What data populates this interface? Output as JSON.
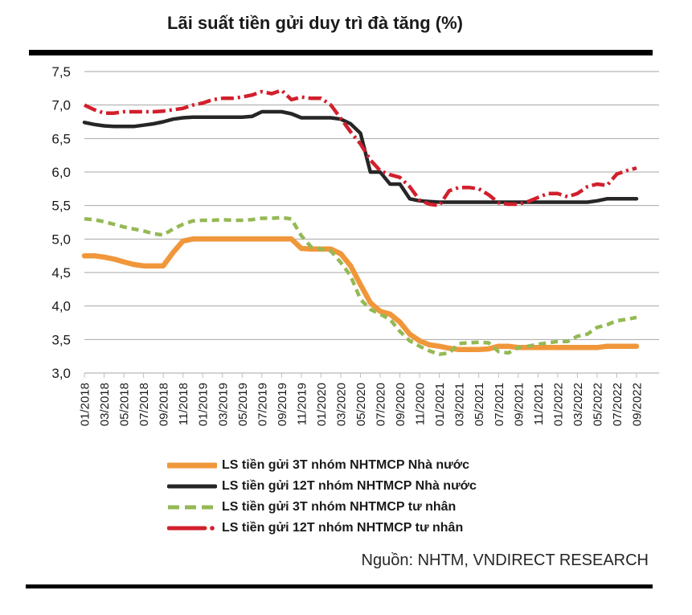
{
  "title": "Lãi suất tiền gửi duy trì đà tăng (%)",
  "source": "Nguồn: NHTM, VNDIRECT RESEARCH",
  "colors": {
    "orange": "#F0973B",
    "black": "#262626",
    "green": "#94B954",
    "red": "#D21F2C",
    "gridline": "#A6A6A6",
    "tick": "#BFBFBF",
    "text": "#1a1a1a",
    "rule": "#000000"
  },
  "chart_data": {
    "type": "line",
    "title": "Lãi suất tiền gửi duy trì đà tăng (%)",
    "xlabel": "",
    "ylabel": "",
    "ylim": [
      3.0,
      7.5
    ],
    "grid": "horizontal",
    "legend_position": "bottom",
    "y_ticks": [
      {
        "label": "7,5",
        "value": 7.5
      },
      {
        "label": "7,0",
        "value": 7.0
      },
      {
        "label": "6,5",
        "value": 6.5
      },
      {
        "label": "6,0",
        "value": 6.0
      },
      {
        "label": "5,5",
        "value": 5.5
      },
      {
        "label": "5,0",
        "value": 5.0
      },
      {
        "label": "4,5",
        "value": 4.5
      },
      {
        "label": "4,0",
        "value": 4.0
      },
      {
        "label": "3,5",
        "value": 3.5
      },
      {
        "label": "3,0",
        "value": 3.0
      }
    ],
    "x": [
      "01/2018",
      "02/2018",
      "03/2018",
      "04/2018",
      "05/2018",
      "06/2018",
      "07/2018",
      "08/2018",
      "09/2018",
      "10/2018",
      "11/2018",
      "12/2018",
      "01/2019",
      "02/2019",
      "03/2019",
      "04/2019",
      "05/2019",
      "06/2019",
      "07/2019",
      "08/2019",
      "09/2019",
      "10/2019",
      "11/2019",
      "12/2019",
      "01/2020",
      "02/2020",
      "03/2020",
      "04/2020",
      "05/2020",
      "06/2020",
      "07/2020",
      "08/2020",
      "09/2020",
      "10/2020",
      "11/2020",
      "12/2020",
      "01/2021",
      "02/2021",
      "03/2021",
      "04/2021",
      "05/2021",
      "06/2021",
      "07/2021",
      "08/2021",
      "09/2021",
      "10/2021",
      "11/2021",
      "12/2021",
      "01/2022",
      "02/2022",
      "03/2022",
      "04/2022",
      "05/2022",
      "06/2022",
      "07/2022",
      "08/2022",
      "09/2022"
    ],
    "x_tick_labels": [
      "01/2018",
      "03/2018",
      "05/2018",
      "07/2018",
      "09/2018",
      "11/2018",
      "01/2019",
      "03/2019",
      "05/2019",
      "07/2019",
      "09/2019",
      "11/2019",
      "01/2020",
      "03/2020",
      "05/2020",
      "07/2020",
      "09/2020",
      "11/2020",
      "01/2021",
      "03/2021",
      "05/2021",
      "07/2021",
      "09/2021",
      "11/2021",
      "01/2022",
      "03/2022",
      "05/2022",
      "07/2022",
      "09/2022"
    ],
    "series": [
      {
        "name": "LS tiền gửi 3T nhóm NHTMCP Nhà nước",
        "color": "#F0973B",
        "style": "solid",
        "width": 6.5,
        "values": [
          4.75,
          4.75,
          4.73,
          4.7,
          4.66,
          4.62,
          4.6,
          4.6,
          4.6,
          4.8,
          4.97,
          5.0,
          5.0,
          5.0,
          5.0,
          5.0,
          5.0,
          5.0,
          5.0,
          5.0,
          5.0,
          5.0,
          4.86,
          4.85,
          4.85,
          4.85,
          4.78,
          4.6,
          4.32,
          4.05,
          3.92,
          3.88,
          3.76,
          3.58,
          3.48,
          3.42,
          3.4,
          3.37,
          3.35,
          3.35,
          3.35,
          3.36,
          3.4,
          3.4,
          3.38,
          3.38,
          3.38,
          3.38,
          3.38,
          3.38,
          3.38,
          3.38,
          3.38,
          3.4,
          3.4,
          3.4,
          3.4
        ]
      },
      {
        "name": "LS tiền gửi 12T nhóm NHTMCP Nhà nước",
        "color": "#262626",
        "style": "solid",
        "width": 4.5,
        "values": [
          6.74,
          6.71,
          6.69,
          6.68,
          6.68,
          6.68,
          6.7,
          6.72,
          6.75,
          6.79,
          6.81,
          6.82,
          6.82,
          6.82,
          6.82,
          6.82,
          6.82,
          6.83,
          6.9,
          6.9,
          6.9,
          6.87,
          6.81,
          6.81,
          6.81,
          6.81,
          6.79,
          6.72,
          6.58,
          6.0,
          6.0,
          5.82,
          5.82,
          5.6,
          5.57,
          5.56,
          5.55,
          5.55,
          5.55,
          5.55,
          5.55,
          5.55,
          5.55,
          5.55,
          5.55,
          5.55,
          5.55,
          5.55,
          5.55,
          5.55,
          5.55,
          5.55,
          5.57,
          5.6,
          5.6,
          5.6,
          5.6
        ]
      },
      {
        "name": "LS tiền gửi 3T nhóm NHTMCP tư nhân",
        "color": "#94B954",
        "style": "dashed",
        "width": 4.5,
        "values": [
          5.3,
          5.29,
          5.26,
          5.22,
          5.18,
          5.15,
          5.12,
          5.08,
          5.06,
          5.15,
          5.22,
          5.27,
          5.28,
          5.28,
          5.29,
          5.28,
          5.28,
          5.29,
          5.31,
          5.31,
          5.32,
          5.3,
          5.05,
          4.88,
          4.85,
          4.82,
          4.65,
          4.45,
          4.1,
          3.95,
          3.88,
          3.8,
          3.62,
          3.48,
          3.4,
          3.33,
          3.28,
          3.3,
          3.44,
          3.45,
          3.46,
          3.45,
          3.32,
          3.3,
          3.38,
          3.4,
          3.43,
          3.45,
          3.47,
          3.47,
          3.55,
          3.58,
          3.68,
          3.72,
          3.78,
          3.8,
          3.83
        ]
      },
      {
        "name": "LS tiền gửi 12T nhóm NHTMCP tư nhân",
        "color": "#D21F2C",
        "style": "dash-dot",
        "width": 4.5,
        "values": [
          7.0,
          6.93,
          6.88,
          6.88,
          6.9,
          6.9,
          6.9,
          6.9,
          6.91,
          6.93,
          6.95,
          7.0,
          7.03,
          7.08,
          7.1,
          7.1,
          7.12,
          7.15,
          7.2,
          7.17,
          7.22,
          7.08,
          7.12,
          7.1,
          7.1,
          7.0,
          6.8,
          6.6,
          6.42,
          6.18,
          6.02,
          5.96,
          5.92,
          5.78,
          5.58,
          5.52,
          5.5,
          5.72,
          5.77,
          5.77,
          5.75,
          5.66,
          5.54,
          5.52,
          5.52,
          5.56,
          5.62,
          5.68,
          5.68,
          5.63,
          5.68,
          5.78,
          5.82,
          5.8,
          5.97,
          6.02,
          6.06
        ]
      }
    ]
  }
}
